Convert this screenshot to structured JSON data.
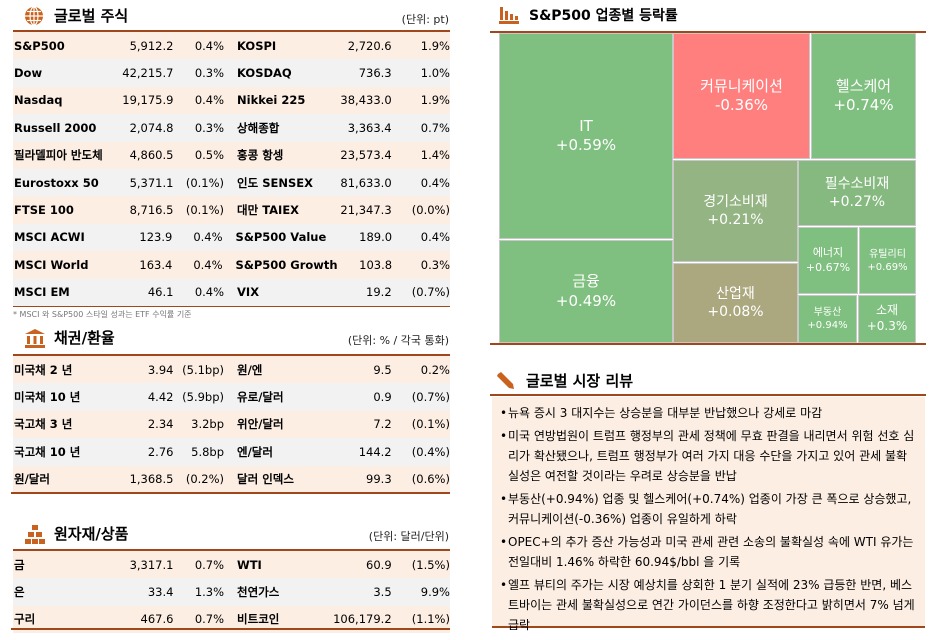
{
  "global_equity": {
    "title": "글로벌 주식",
    "unit": "(단위: pt)",
    "icon": "globe-icon",
    "rows": [
      [
        "S&P500",
        "5,912.2",
        "0.4%",
        "KOSPI",
        "2,720.6",
        "1.9%"
      ],
      [
        "Dow",
        "42,215.7",
        "0.3%",
        "KOSDAQ",
        "736.3",
        "1.0%"
      ],
      [
        "Nasdaq",
        "19,175.9",
        "0.4%",
        "Nikkei 225",
        "38,433.0",
        "1.9%"
      ],
      [
        "Russell 2000",
        "2,074.8",
        "0.3%",
        "상해종합",
        "3,363.4",
        "0.7%"
      ],
      [
        "필라델피아 반도체",
        "4,860.5",
        "0.5%",
        "홍콩 항셍",
        "23,573.4",
        "1.4%"
      ],
      [
        "Eurostoxx 50",
        "5,371.1",
        "(0.1%)",
        "인도 SENSEX",
        "81,633.0",
        "0.4%"
      ],
      [
        "FTSE 100",
        "8,716.5",
        "(0.1%)",
        "대만 TAIEX",
        "21,347.3",
        "(0.0%)"
      ],
      [
        "MSCI ACWI",
        "123.9",
        "0.4%",
        "S&P500 Value",
        "189.0",
        "0.4%"
      ],
      [
        "MSCI World",
        "163.4",
        "0.4%",
        "S&P500 Growth",
        "103.8",
        "0.3%"
      ],
      [
        "MSCI EM",
        "46.1",
        "0.4%",
        "VIX",
        "19.2",
        "(0.7%)"
      ]
    ],
    "footnote": "* MSCI 와 S&P500 스타일 성과는 ETF 수익률 기준"
  },
  "bonds_fx": {
    "title": "채권/환율",
    "unit": "(단위: % / 각국 통화)",
    "icon": "bank-icon",
    "rows": [
      [
        "미국채 2 년",
        "3.94",
        "(5.1bp)",
        "원/엔",
        "9.5",
        "0.2%"
      ],
      [
        "미국채 10 년",
        "4.42",
        "(5.9bp)",
        "유로/달러",
        "0.9",
        "(0.7%)"
      ],
      [
        "국고채 3 년",
        "2.34",
        "3.2bp",
        "위안/달러",
        "7.2",
        "(0.1%)"
      ],
      [
        "국고채 10 년",
        "2.76",
        "5.8bp",
        "엔/달러",
        "144.2",
        "(0.4%)"
      ],
      [
        "원/달러",
        "1,368.5",
        "(0.2%)",
        "달러 인덱스",
        "99.3",
        "(0.6%)"
      ]
    ]
  },
  "commodities": {
    "title": "원자재/상품",
    "unit": "(단위: 달러/단위)",
    "icon": "gold-bars-icon",
    "rows": [
      [
        "금",
        "3,317.1",
        "0.7%",
        "WTI",
        "60.9",
        "(1.5%)"
      ],
      [
        "은",
        "33.4",
        "1.3%",
        "천연가스",
        "3.5",
        "9.9%"
      ],
      [
        "구리",
        "467.6",
        "0.7%",
        "비트코인",
        "106,179.2",
        "(1.1%)"
      ]
    ]
  },
  "treemap": {
    "title": "S&P500 업종별 등락률",
    "icon": "bar-chart-icon",
    "cells": [
      {
        "name": "IT",
        "value": "+0.59%",
        "color": "#7fbf7f"
      },
      {
        "name": "금융",
        "value": "+0.49%",
        "color": "#7fbf7f"
      },
      {
        "name": "커뮤니케이션",
        "value": "-0.36%",
        "color": "#ff7f7f"
      },
      {
        "name": "헬스케어",
        "value": "+0.74%",
        "color": "#7fbf7f"
      },
      {
        "name": "경기소비재",
        "value": "+0.21%",
        "color": "#94b583"
      },
      {
        "name": "산업재",
        "value": "+0.08%",
        "color": "#aba77e"
      },
      {
        "name": "필수소비재",
        "value": "+0.27%",
        "color": "#86b97f"
      },
      {
        "name": "에너지",
        "value": "+0.67%",
        "color": "#7fbf7f"
      },
      {
        "name": "유틸리티",
        "value": "+0.69%",
        "color": "#7fbf7f"
      },
      {
        "name": "부동산",
        "value": "+0.94%",
        "color": "#7fbf7f"
      },
      {
        "name": "소재",
        "value": "+0.3%",
        "color": "#7fbf7f"
      }
    ]
  },
  "review": {
    "title": "글로벌 시장 리뷰",
    "icon": "pen-icon",
    "bullets": [
      "뉴욕 증시 3 대지수는 상승분을 대부분 반납했으나 강세로 마감",
      "미국 연방법원이 트럼프 행정부의 관세 정책에 무효 판결을 내리면서 위험 선호 심리가 확산됐으나, 트럼프 행정부가 여러 가지 대응 수단을 가지고 있어 관세 불확실성은 여전할 것이라는 우려로 상승분을 반납",
      "부동산(+0.94%) 업종 및 헬스케어(+0.74%) 업종이 가장 큰 폭으로 상승했고, 커뮤니케이션(-0.36%) 업종이 유일하게 하락",
      "OPEC+의 추가 증산 가능성과 미국 관세 관련 소송의 불확실성 속에 WTI 유가는 전일대비 1.46% 하락한 60.94$/bbl 을 기록",
      "엘프 뷰티의 주가는 시장 예상치를 상회한 1 분기 실적에 23% 급등한 반면, 베스트바이는 관세 불확실성으로 연간 가이던스를 하향 조정한다고 밝히면서 7% 넘게 급락"
    ]
  },
  "colors": {
    "accent": "#a0471c",
    "icon": "#c8621e",
    "row_odd": "#fdeee4",
    "row_even": "#f2f2f2"
  }
}
